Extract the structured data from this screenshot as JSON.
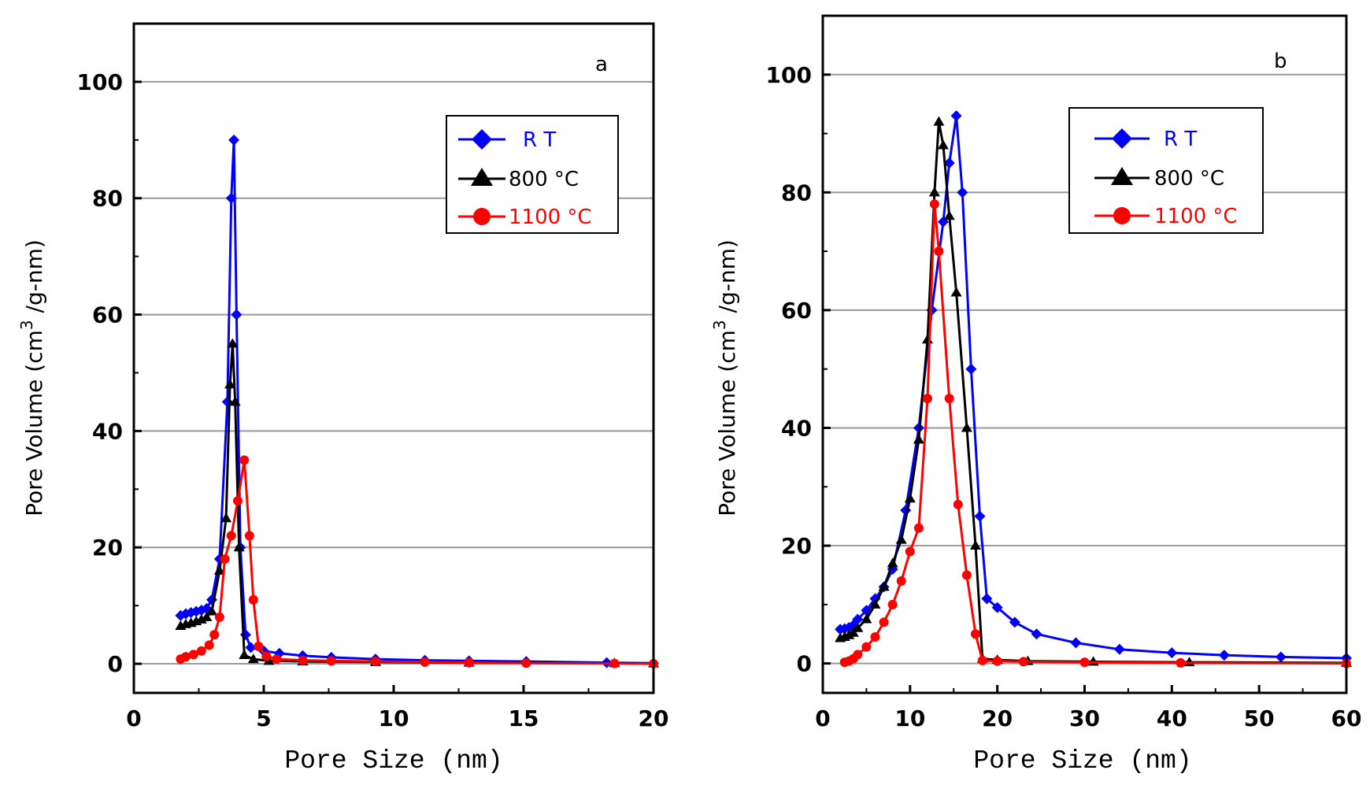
{
  "chart_data": [
    {
      "panel": "a",
      "type": "line",
      "xlabel": "Pore Size (nm)",
      "ylabel": "Pore Volume (cm",
      "ylabel_sup": "3",
      "ylabel_tail": " /g-nm)",
      "xlim": [
        0,
        20
      ],
      "ylim": [
        -5,
        110
      ],
      "xticks": [
        0,
        5,
        10,
        15,
        20
      ],
      "yticks": [
        0,
        20,
        40,
        60,
        80,
        100
      ],
      "grid": "horizontal",
      "legend_position": "top-right",
      "series": [
        {
          "name": "R T",
          "color": "#0000ff",
          "marker": "diamond",
          "points": [
            [
              1.8,
              8.3
            ],
            [
              2.0,
              8.6
            ],
            [
              2.2,
              8.8
            ],
            [
              2.4,
              9.0
            ],
            [
              2.6,
              9.2
            ],
            [
              2.8,
              9.5
            ],
            [
              3.0,
              11
            ],
            [
              3.3,
              18
            ],
            [
              3.6,
              45
            ],
            [
              3.75,
              80
            ],
            [
              3.85,
              90
            ],
            [
              3.95,
              60
            ],
            [
              4.1,
              20
            ],
            [
              4.3,
              5
            ],
            [
              4.5,
              2.8
            ],
            [
              5.0,
              2.2
            ],
            [
              5.6,
              1.8
            ],
            [
              6.5,
              1.4
            ],
            [
              7.6,
              1.1
            ],
            [
              9.3,
              0.8
            ],
            [
              11.2,
              0.6
            ],
            [
              12.9,
              0.5
            ],
            [
              15.1,
              0.4
            ],
            [
              18.2,
              0.2
            ],
            [
              20,
              0.1
            ]
          ]
        },
        {
          "name": "800 °C",
          "color": "#000000",
          "marker": "triangle",
          "points": [
            [
              1.8,
              6.5
            ],
            [
              2.0,
              6.8
            ],
            [
              2.2,
              7.0
            ],
            [
              2.4,
              7.3
            ],
            [
              2.6,
              7.6
            ],
            [
              2.8,
              8.0
            ],
            [
              3.0,
              9
            ],
            [
              3.3,
              16
            ],
            [
              3.55,
              25
            ],
            [
              3.7,
              48
            ],
            [
              3.8,
              55
            ],
            [
              3.9,
              45
            ],
            [
              4.05,
              20
            ],
            [
              4.25,
              1.5
            ],
            [
              4.6,
              0.8
            ],
            [
              5.2,
              0.5
            ],
            [
              6.5,
              0.4
            ],
            [
              9.3,
              0.3
            ],
            [
              12.9,
              0.2
            ],
            [
              18.5,
              0.1
            ],
            [
              20,
              0.05
            ]
          ]
        },
        {
          "name": "1100 °C",
          "color": "#ff0000",
          "marker": "circle",
          "points": [
            [
              1.8,
              0.8
            ],
            [
              2.0,
              1.2
            ],
            [
              2.3,
              1.6
            ],
            [
              2.6,
              2.2
            ],
            [
              2.9,
              3.2
            ],
            [
              3.1,
              5
            ],
            [
              3.3,
              8
            ],
            [
              3.5,
              18
            ],
            [
              3.75,
              22
            ],
            [
              4.0,
              28
            ],
            [
              4.25,
              35
            ],
            [
              4.45,
              22
            ],
            [
              4.6,
              11
            ],
            [
              4.8,
              3
            ],
            [
              5.1,
              1.3
            ],
            [
              5.5,
              0.8
            ],
            [
              6.5,
              0.6
            ],
            [
              7.6,
              0.5
            ],
            [
              9.3,
              0.4
            ],
            [
              11.2,
              0.3
            ],
            [
              12.9,
              0.2
            ],
            [
              15.1,
              0.1
            ],
            [
              18.5,
              0.05
            ],
            [
              20,
              0
            ]
          ]
        }
      ]
    },
    {
      "panel": "b",
      "type": "line",
      "xlabel": "Pore Size (nm)",
      "ylabel": "Pore Volume (cm",
      "ylabel_sup": "3",
      "ylabel_tail": " /g-nm)",
      "xlim": [
        0,
        60
      ],
      "ylim": [
        -5,
        110
      ],
      "xticks": [
        0,
        10,
        20,
        30,
        40,
        50,
        60
      ],
      "yticks": [
        0,
        20,
        40,
        60,
        80,
        100
      ],
      "grid": "horizontal",
      "legend_position": "top-right",
      "series": [
        {
          "name": "R T",
          "color": "#0000ff",
          "marker": "diamond",
          "points": [
            [
              2.0,
              5.8
            ],
            [
              2.5,
              5.9
            ],
            [
              3.0,
              6.1
            ],
            [
              3.5,
              6.5
            ],
            [
              4.0,
              7.5
            ],
            [
              5.0,
              9
            ],
            [
              6.0,
              11
            ],
            [
              7.0,
              13
            ],
            [
              8.0,
              16
            ],
            [
              9.5,
              26
            ],
            [
              11.0,
              40
            ],
            [
              12.5,
              60
            ],
            [
              13.8,
              75
            ],
            [
              14.5,
              85
            ],
            [
              15.3,
              93
            ],
            [
              16.0,
              80
            ],
            [
              17.0,
              50
            ],
            [
              18.0,
              25
            ],
            [
              18.8,
              11
            ],
            [
              20.0,
              9.5
            ],
            [
              22.0,
              7
            ],
            [
              24.5,
              5
            ],
            [
              29.0,
              3.5
            ],
            [
              34.0,
              2.4
            ],
            [
              40.0,
              1.8
            ],
            [
              46.0,
              1.4
            ],
            [
              52.5,
              1.1
            ],
            [
              60.0,
              0.9
            ]
          ]
        },
        {
          "name": "800 °C",
          "color": "#000000",
          "marker": "triangle",
          "points": [
            [
              2.0,
              4.3
            ],
            [
              2.5,
              4.5
            ],
            [
              3.0,
              4.8
            ],
            [
              3.5,
              5.2
            ],
            [
              4.0,
              6
            ],
            [
              5.0,
              7.5
            ],
            [
              6.0,
              10
            ],
            [
              7.0,
              13
            ],
            [
              8.0,
              17
            ],
            [
              9.0,
              21
            ],
            [
              10.0,
              28
            ],
            [
              11.0,
              38
            ],
            [
              12.0,
              55
            ],
            [
              12.8,
              80
            ],
            [
              13.3,
              92
            ],
            [
              13.8,
              88
            ],
            [
              14.5,
              76
            ],
            [
              15.3,
              63
            ],
            [
              16.5,
              40
            ],
            [
              17.5,
              20
            ],
            [
              18.3,
              0.8
            ],
            [
              20,
              0.6
            ],
            [
              23.5,
              0.4
            ],
            [
              31.0,
              0.3
            ],
            [
              42.0,
              0.2
            ],
            [
              60,
              0.1
            ]
          ]
        },
        {
          "name": "1100 °C",
          "color": "#ff0000",
          "marker": "circle",
          "points": [
            [
              2.5,
              0.2
            ],
            [
              3.0,
              0.4
            ],
            [
              3.5,
              0.8
            ],
            [
              4.0,
              1.5
            ],
            [
              5.0,
              2.8
            ],
            [
              6.0,
              4.5
            ],
            [
              7.0,
              7
            ],
            [
              8.0,
              10
            ],
            [
              9.0,
              14
            ],
            [
              10.0,
              19
            ],
            [
              11.0,
              23
            ],
            [
              12.0,
              45
            ],
            [
              12.8,
              78
            ],
            [
              13.3,
              70
            ],
            [
              14.5,
              45
            ],
            [
              15.5,
              27
            ],
            [
              16.5,
              15
            ],
            [
              17.5,
              5
            ],
            [
              18.3,
              0.5
            ],
            [
              20,
              0.4
            ],
            [
              23.0,
              0.3
            ],
            [
              30.0,
              0.2
            ],
            [
              41.0,
              0.1
            ],
            [
              60,
              0
            ]
          ]
        }
      ]
    }
  ]
}
